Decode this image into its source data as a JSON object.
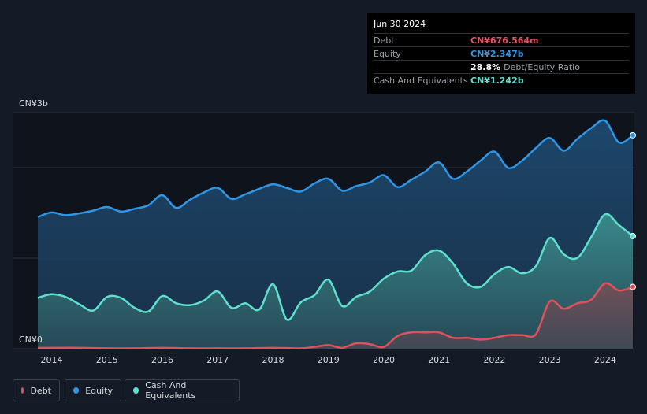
{
  "tooltip": {
    "date": "Jun 30 2024",
    "rows": [
      {
        "label": "Debt",
        "value": "CN¥676.564m",
        "color": "#e0525b"
      },
      {
        "label": "Equity",
        "value": "CN¥2.347b",
        "color": "#2f96e6"
      },
      {
        "label": "",
        "value": "28.8%",
        "extra": "Debt/Equity Ratio",
        "color": "#ffffff"
      },
      {
        "label": "Cash And Equivalents",
        "value": "CN¥1.242b",
        "color": "#5fe0cf"
      }
    ]
  },
  "legend": [
    {
      "name": "Debt",
      "color": "#e0525b"
    },
    {
      "name": "Equity",
      "color": "#2f96e6"
    },
    {
      "name": "Cash And Equivalents",
      "color": "#5fe0cf"
    }
  ],
  "chart_data": {
    "type": "area",
    "y_top_label": "CN¥3b",
    "y_bottom_label": "CN¥0",
    "ylim": [
      0,
      2.6
    ],
    "xlim": [
      2013.75,
      2024.5
    ],
    "x_ticks": [
      "2014",
      "2015",
      "2016",
      "2017",
      "2018",
      "2019",
      "2020",
      "2021",
      "2022",
      "2023",
      "2024"
    ],
    "x_tick_values": [
      2014,
      2015,
      2016,
      2017,
      2018,
      2019,
      2020,
      2021,
      2022,
      2023,
      2024
    ],
    "grid": true,
    "legend_position": "bottom-left",
    "series": [
      {
        "name": "Equity",
        "color": "#2f96e6",
        "x": [
          2013.75,
          2014.0,
          2014.25,
          2014.5,
          2014.75,
          2015.0,
          2015.25,
          2015.5,
          2015.75,
          2016.0,
          2016.25,
          2016.5,
          2016.75,
          2017.0,
          2017.25,
          2017.5,
          2017.75,
          2018.0,
          2018.25,
          2018.5,
          2018.75,
          2019.0,
          2019.25,
          2019.5,
          2019.75,
          2020.0,
          2020.25,
          2020.5,
          2020.75,
          2021.0,
          2021.25,
          2021.5,
          2021.75,
          2022.0,
          2022.25,
          2022.5,
          2022.75,
          2023.0,
          2023.25,
          2023.5,
          2023.75,
          2024.0,
          2024.25,
          2024.5
        ],
        "y": [
          1.45,
          1.5,
          1.47,
          1.49,
          1.52,
          1.56,
          1.51,
          1.54,
          1.58,
          1.69,
          1.55,
          1.64,
          1.72,
          1.77,
          1.65,
          1.7,
          1.76,
          1.81,
          1.77,
          1.73,
          1.82,
          1.87,
          1.74,
          1.79,
          1.83,
          1.91,
          1.78,
          1.86,
          1.95,
          2.05,
          1.87,
          1.95,
          2.07,
          2.17,
          1.99,
          2.07,
          2.21,
          2.32,
          2.18,
          2.31,
          2.43,
          2.51,
          2.27,
          2.35
        ]
      },
      {
        "name": "Cash And Equivalents",
        "color": "#5fe0cf",
        "x": [
          2013.75,
          2014.0,
          2014.25,
          2014.5,
          2014.75,
          2015.0,
          2015.25,
          2015.5,
          2015.75,
          2016.0,
          2016.25,
          2016.5,
          2016.75,
          2017.0,
          2017.25,
          2017.5,
          2017.75,
          2018.0,
          2018.25,
          2018.5,
          2018.75,
          2019.0,
          2019.25,
          2019.5,
          2019.75,
          2020.0,
          2020.25,
          2020.5,
          2020.75,
          2021.0,
          2021.25,
          2021.5,
          2021.75,
          2022.0,
          2022.25,
          2022.5,
          2022.75,
          2023.0,
          2023.25,
          2023.5,
          2023.75,
          2024.0,
          2024.25,
          2024.5
        ],
        "y": [
          0.56,
          0.6,
          0.57,
          0.49,
          0.42,
          0.57,
          0.56,
          0.45,
          0.41,
          0.58,
          0.5,
          0.48,
          0.53,
          0.63,
          0.45,
          0.5,
          0.43,
          0.71,
          0.32,
          0.51,
          0.59,
          0.76,
          0.47,
          0.57,
          0.63,
          0.77,
          0.85,
          0.86,
          1.03,
          1.08,
          0.94,
          0.72,
          0.68,
          0.82,
          0.9,
          0.83,
          0.91,
          1.22,
          1.04,
          1.0,
          1.23,
          1.48,
          1.36,
          1.24
        ]
      },
      {
        "name": "Debt",
        "color": "#e0525b",
        "x": [
          2013.75,
          2014.0,
          2014.5,
          2015.0,
          2015.5,
          2016.0,
          2016.5,
          2017.0,
          2017.5,
          2018.0,
          2018.5,
          2018.75,
          2019.0,
          2019.25,
          2019.5,
          2019.75,
          2020.0,
          2020.25,
          2020.5,
          2020.75,
          2021.0,
          2021.25,
          2021.5,
          2021.75,
          2022.0,
          2022.25,
          2022.5,
          2022.75,
          2023.0,
          2023.25,
          2023.5,
          2023.75,
          2024.0,
          2024.25,
          2024.5
        ],
        "y": [
          0.01,
          0.01,
          0.01,
          0.005,
          0.005,
          0.01,
          0.005,
          0.005,
          0.005,
          0.01,
          0.005,
          0.02,
          0.04,
          0.01,
          0.06,
          0.05,
          0.02,
          0.14,
          0.18,
          0.18,
          0.18,
          0.12,
          0.12,
          0.1,
          0.12,
          0.15,
          0.15,
          0.16,
          0.52,
          0.44,
          0.5,
          0.54,
          0.72,
          0.64,
          0.68
        ]
      }
    ]
  }
}
